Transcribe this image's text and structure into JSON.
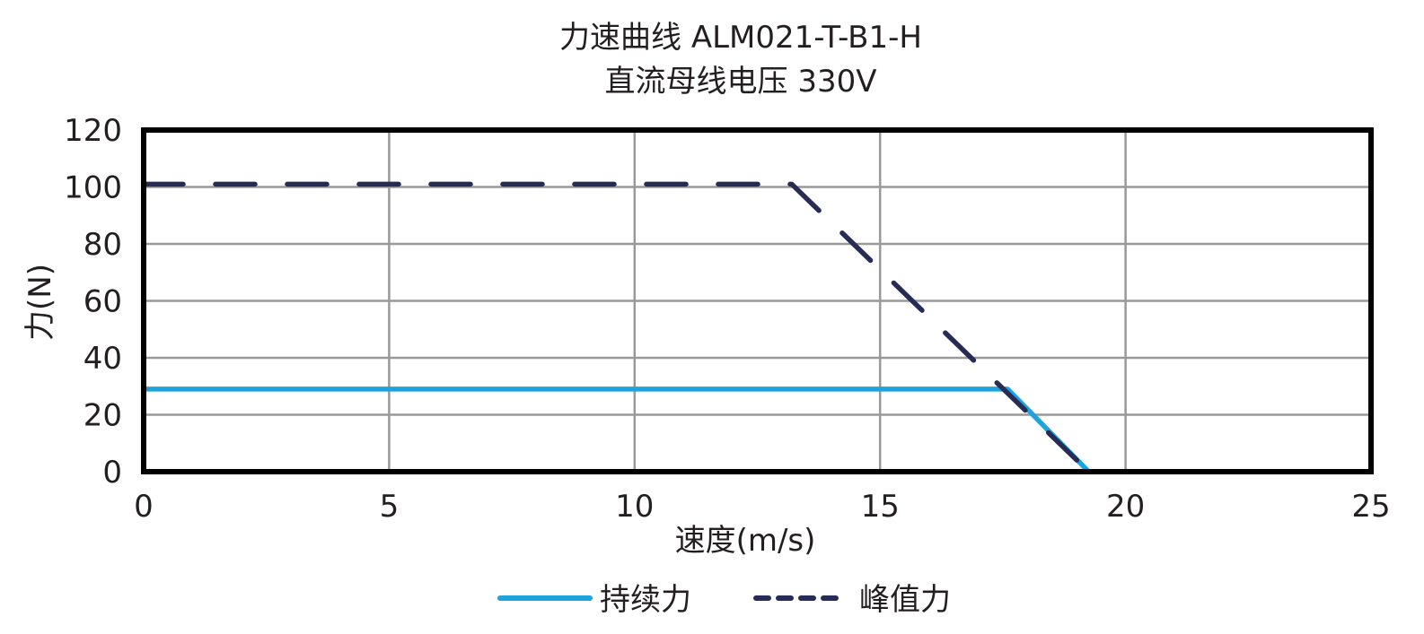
{
  "chart_data": {
    "type": "line",
    "title": "力速曲线 ALM021-T-B1-H",
    "subtitle": "直流母线电压 330V",
    "xlabel": "速度(m/s)",
    "ylabel": "力(N)",
    "xlim": [
      0,
      25
    ],
    "ylim": [
      0,
      120
    ],
    "xticks": [
      0,
      5,
      10,
      15,
      20,
      25
    ],
    "yticks": [
      0,
      20,
      40,
      60,
      80,
      100,
      120
    ],
    "grid": true,
    "legend_position": "bottom",
    "series": [
      {
        "name": "持续力",
        "style": "solid",
        "color": "#1fa3dc",
        "x": [
          0,
          17.6,
          19.25
        ],
        "y": [
          29,
          29,
          0
        ]
      },
      {
        "name": "峰值力",
        "style": "dashed",
        "color": "#262c55",
        "x": [
          0,
          13.2,
          19.25
        ],
        "y": [
          101,
          101,
          0
        ]
      }
    ]
  },
  "colors": {
    "axis": "#000000",
    "grid": "#999999",
    "text": "#231f20"
  }
}
